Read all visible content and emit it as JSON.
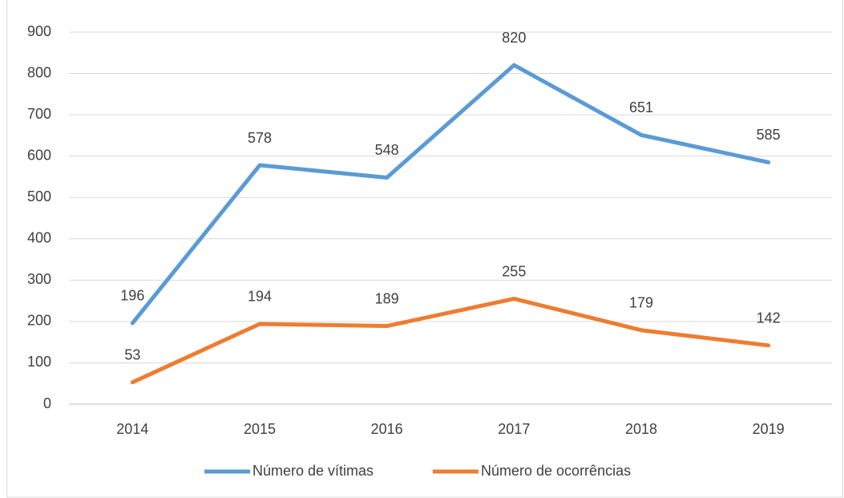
{
  "chart_data": {
    "type": "line",
    "categories": [
      "2014",
      "2015",
      "2016",
      "2017",
      "2018",
      "2019"
    ],
    "series": [
      {
        "name": "Número de vítimas",
        "color": "#5b9bd5",
        "values": [
          196,
          578,
          548,
          820,
          651,
          585
        ]
      },
      {
        "name": "Número de ocorrências",
        "color": "#ed7d31",
        "values": [
          53,
          194,
          189,
          255,
          179,
          142
        ]
      }
    ],
    "ylim": [
      0,
      900
    ],
    "yticks": [
      0,
      100,
      200,
      300,
      400,
      500,
      600,
      700,
      800,
      900
    ],
    "grid": true,
    "legend": "bottom"
  }
}
